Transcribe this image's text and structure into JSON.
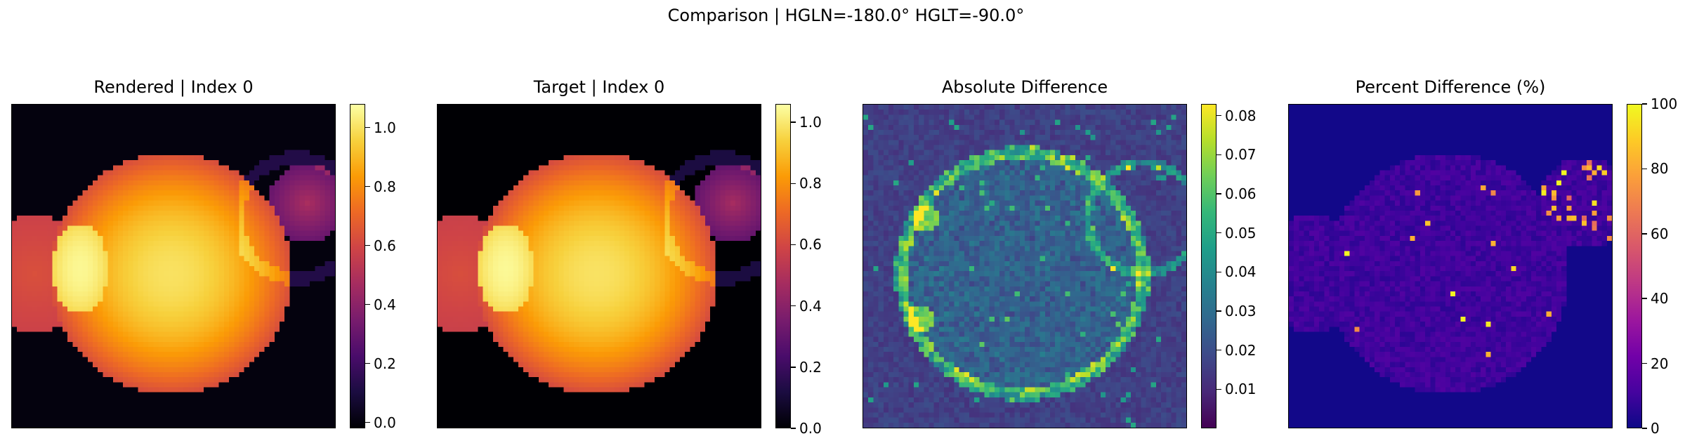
{
  "figure": {
    "suptitle": "Comparison | HGLN=-180.0° HGLT=-90.0°"
  },
  "chart_data": [
    {
      "type": "heatmap",
      "title": "Rendered | Index 0",
      "colormap": "inferno",
      "colorbar_range": [
        -0.02,
        1.08
      ],
      "colorbar_ticks": [
        "0.0",
        "0.2",
        "0.4",
        "0.6",
        "0.8",
        "1.0"
      ],
      "colorbar_tick_values": [
        0.0,
        0.2,
        0.4,
        0.6,
        0.8,
        1.0
      ],
      "axes_visible": false
    },
    {
      "type": "heatmap",
      "title": "Target | Index 0",
      "colormap": "inferno",
      "colorbar_range": [
        0.0,
        1.06
      ],
      "colorbar_ticks": [
        "0.0",
        "0.2",
        "0.4",
        "0.6",
        "0.8",
        "1.0"
      ],
      "colorbar_tick_values": [
        0.0,
        0.2,
        0.4,
        0.6,
        0.8,
        1.0
      ],
      "axes_visible": false
    },
    {
      "type": "heatmap",
      "title": "Absolute Difference",
      "colormap": "viridis",
      "colorbar_range": [
        0.0,
        0.083
      ],
      "colorbar_ticks": [
        "0.01",
        "0.02",
        "0.03",
        "0.04",
        "0.05",
        "0.06",
        "0.07",
        "0.08"
      ],
      "colorbar_tick_values": [
        0.01,
        0.02,
        0.03,
        0.04,
        0.05,
        0.06,
        0.07,
        0.08
      ],
      "axes_visible": false
    },
    {
      "type": "heatmap",
      "title": "Percent Difference (%)",
      "colormap": "plasma",
      "colorbar_range": [
        0,
        100
      ],
      "colorbar_ticks": [
        "0",
        "20",
        "40",
        "60",
        "80",
        "100"
      ],
      "colorbar_tick_values": [
        0,
        20,
        40,
        60,
        80,
        100
      ],
      "axes_visible": false
    }
  ]
}
